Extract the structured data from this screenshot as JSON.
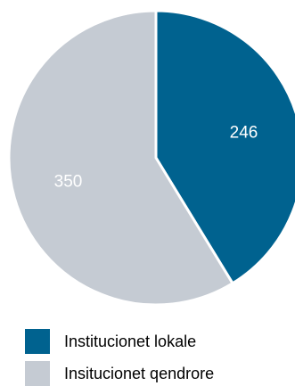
{
  "chart_data": {
    "type": "pie",
    "labels": [
      "Institucionet lokale",
      "Insitucionet qendrore"
    ],
    "values": [
      246,
      350
    ],
    "colors": [
      "#00628f",
      "#c5cbd3"
    ],
    "legend": {
      "placement": "bottom",
      "entries": [
        "Institucionet lokale",
        "Insitucionet qendrore"
      ]
    }
  }
}
